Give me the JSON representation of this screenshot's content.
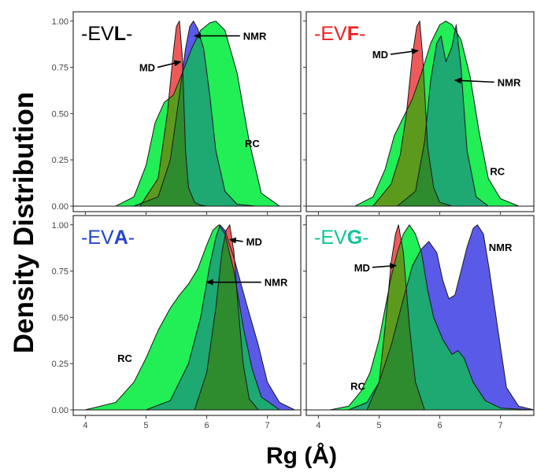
{
  "chart_data": {
    "type": "area",
    "title": "",
    "xlabel": "Rg (Å)",
    "ylabel": "Density Distribution",
    "xlim": [
      3.8,
      7.55
    ],
    "ylim": [
      -0.03,
      1.05
    ],
    "x_ticks": [
      4,
      5,
      6,
      7
    ],
    "y_ticks": [
      "0.00",
      "0.25",
      "0.50",
      "0.75",
      "1.00"
    ],
    "grid": false,
    "colors": {
      "NMR": "#5a5ae8",
      "MD": "#ee5a5a",
      "RC": "#22ee55",
      "overlap_NMR_RC": "#1ea872",
      "overlap_MD_RC": "#5c9a1e",
      "overlap_all": "#2e8b2e"
    },
    "panels": [
      {
        "id": "EVL",
        "title_prefix": "-EV",
        "title_letter": "L",
        "title_suffix": "-",
        "letter_color": "#000000",
        "annotations": [
          {
            "text": "MD",
            "x": 5.15,
            "y": 0.75,
            "arrow_to": [
              5.57,
              0.78
            ]
          },
          {
            "text": "NMR",
            "x": 6.6,
            "y": 0.92,
            "arrow_to": [
              5.8,
              0.92
            ]
          },
          {
            "text": "RC",
            "x": 6.75,
            "y": 0.34
          }
        ],
        "series": [
          {
            "name": "NMR",
            "x": [
              4.8,
              5.2,
              5.4,
              5.55,
              5.65,
              5.72,
              5.78,
              5.85,
              5.95,
              6.05,
              6.15,
              6.3,
              6.5,
              6.8
            ],
            "y": [
              0,
              0.05,
              0.25,
              0.6,
              0.85,
              0.97,
              1.0,
              0.96,
              0.85,
              0.6,
              0.3,
              0.08,
              0.01,
              0
            ]
          },
          {
            "name": "MD",
            "x": [
              4.9,
              5.2,
              5.35,
              5.45,
              5.5,
              5.55,
              5.6,
              5.65,
              5.7,
              5.8,
              5.9,
              6.0
            ],
            "y": [
              0,
              0.15,
              0.5,
              0.83,
              0.97,
              1.0,
              0.8,
              0.3,
              0.1,
              0.02,
              0.005,
              0
            ]
          },
          {
            "name": "RC",
            "x": [
              4.5,
              4.8,
              5.0,
              5.15,
              5.3,
              5.45,
              5.6,
              5.75,
              5.9,
              6.05,
              6.15,
              6.3,
              6.5,
              6.7,
              6.9,
              7.2
            ],
            "y": [
              0,
              0.05,
              0.22,
              0.45,
              0.56,
              0.6,
              0.72,
              0.85,
              0.95,
              0.99,
              1.0,
              0.95,
              0.72,
              0.35,
              0.07,
              0
            ]
          }
        ]
      },
      {
        "id": "EVF",
        "title_prefix": "-EV",
        "title_letter": "F",
        "title_suffix": "-",
        "letter_color": "#ee2222",
        "prefix_color": "#ee2222",
        "annotations": [
          {
            "text": "MD",
            "x": 5.15,
            "y": 0.82,
            "arrow_to": [
              5.64,
              0.84
            ]
          },
          {
            "text": "NMR",
            "x": 6.95,
            "y": 0.67,
            "arrow_to": [
              6.25,
              0.68
            ]
          },
          {
            "text": "RC",
            "x": 6.95,
            "y": 0.19
          }
        ],
        "series": [
          {
            "name": "NMR",
            "x": [
              5.3,
              5.6,
              5.75,
              5.85,
              5.95,
              6.02,
              6.1,
              6.2,
              6.27,
              6.35,
              6.45,
              6.6,
              6.8
            ],
            "y": [
              0,
              0.08,
              0.35,
              0.68,
              0.88,
              0.92,
              0.78,
              0.86,
              0.98,
              0.75,
              0.3,
              0.05,
              0
            ]
          },
          {
            "name": "MD",
            "x": [
              4.9,
              5.2,
              5.35,
              5.45,
              5.55,
              5.62,
              5.67,
              5.72,
              5.8,
              5.9,
              6.0,
              6.2
            ],
            "y": [
              0,
              0.12,
              0.28,
              0.5,
              0.82,
              0.97,
              1.0,
              0.8,
              0.32,
              0.1,
              0.02,
              0
            ]
          },
          {
            "name": "RC",
            "x": [
              4.6,
              4.9,
              5.1,
              5.25,
              5.4,
              5.55,
              5.7,
              5.85,
              6.0,
              6.1,
              6.2,
              6.35,
              6.5,
              6.65,
              6.8,
              7.0,
              7.3
            ],
            "y": [
              0,
              0.05,
              0.2,
              0.38,
              0.48,
              0.58,
              0.72,
              0.88,
              0.98,
              1.0,
              0.98,
              0.9,
              0.7,
              0.4,
              0.15,
              0.04,
              0
            ]
          }
        ]
      },
      {
        "id": "EVA",
        "title_prefix": "-EV",
        "title_letter": "A",
        "title_suffix": "-",
        "letter_color": "#2244cc",
        "prefix_color": "#2244cc",
        "annotations": [
          {
            "text": "MD",
            "x": 6.65,
            "y": 0.91,
            "arrow_to": [
              6.38,
              0.92
            ]
          },
          {
            "text": "NMR",
            "x": 6.95,
            "y": 0.69,
            "arrow_to": [
              6.0,
              0.69
            ]
          },
          {
            "text": "RC",
            "x": 4.65,
            "y": 0.28
          }
        ],
        "series": [
          {
            "name": "NMR",
            "x": [
              5.0,
              5.4,
              5.7,
              5.9,
              6.05,
              6.15,
              6.22,
              6.3,
              6.45,
              6.65,
              6.85,
              7.0,
              7.2,
              7.45
            ],
            "y": [
              0,
              0.05,
              0.25,
              0.5,
              0.78,
              0.93,
              1.0,
              0.97,
              0.82,
              0.58,
              0.35,
              0.15,
              0.04,
              0
            ]
          },
          {
            "name": "MD",
            "x": [
              5.8,
              6.0,
              6.15,
              6.25,
              6.32,
              6.38,
              6.45,
              6.52,
              6.6,
              6.7,
              6.85
            ],
            "y": [
              0,
              0.2,
              0.55,
              0.85,
              0.97,
              1.0,
              0.85,
              0.55,
              0.25,
              0.06,
              0
            ]
          },
          {
            "name": "RC",
            "x": [
              4.0,
              4.5,
              4.8,
              5.0,
              5.2,
              5.4,
              5.55,
              5.7,
              5.85,
              6.0,
              6.1,
              6.2,
              6.3,
              6.45,
              6.6,
              6.75,
              6.9,
              7.2
            ],
            "y": [
              0,
              0.04,
              0.15,
              0.28,
              0.43,
              0.55,
              0.62,
              0.68,
              0.76,
              0.89,
              0.97,
              1.0,
              0.95,
              0.75,
              0.45,
              0.22,
              0.07,
              0
            ]
          }
        ]
      },
      {
        "id": "EVG",
        "title_prefix": "-EV",
        "title_letter": "G",
        "title_suffix": "-",
        "letter_color": "#11c499",
        "prefix_color": "#11c499",
        "annotations": [
          {
            "text": "MD",
            "x": 4.85,
            "y": 0.77,
            "arrow_to": [
              5.28,
              0.78
            ]
          },
          {
            "text": "NMR",
            "x": 7.0,
            "y": 0.88
          },
          {
            "text": "RC",
            "x": 4.65,
            "y": 0.13
          }
        ],
        "series": [
          {
            "name": "NMR",
            "x": [
              4.5,
              4.8,
              5.0,
              5.2,
              5.4,
              5.55,
              5.7,
              5.82,
              5.95,
              6.05,
              6.15,
              6.25,
              6.35,
              6.45,
              6.55,
              6.62,
              6.72,
              6.82,
              6.95,
              7.1,
              7.3,
              7.55
            ],
            "y": [
              0,
              0.04,
              0.15,
              0.35,
              0.6,
              0.78,
              0.87,
              0.91,
              0.85,
              0.7,
              0.6,
              0.62,
              0.75,
              0.88,
              0.98,
              1.0,
              0.95,
              0.75,
              0.45,
              0.12,
              0.02,
              0
            ]
          },
          {
            "name": "MD",
            "x": [
              4.8,
              5.0,
              5.1,
              5.2,
              5.27,
              5.32,
              5.4,
              5.5,
              5.6,
              5.75
            ],
            "y": [
              0,
              0.15,
              0.45,
              0.8,
              0.95,
              1.0,
              0.85,
              0.45,
              0.15,
              0
            ]
          },
          {
            "name": "RC",
            "x": [
              4.2,
              4.5,
              4.7,
              4.85,
              5.0,
              5.1,
              5.2,
              5.3,
              5.4,
              5.5,
              5.6,
              5.7,
              5.8,
              5.9,
              6.05,
              6.2,
              6.3,
              6.4,
              6.55,
              6.75,
              7.0,
              7.5
            ],
            "y": [
              0,
              0.02,
              0.1,
              0.2,
              0.38,
              0.55,
              0.72,
              0.85,
              0.95,
              1.0,
              0.95,
              0.85,
              0.65,
              0.5,
              0.38,
              0.3,
              0.32,
              0.28,
              0.15,
              0.05,
              0.01,
              0
            ]
          }
        ]
      }
    ]
  }
}
